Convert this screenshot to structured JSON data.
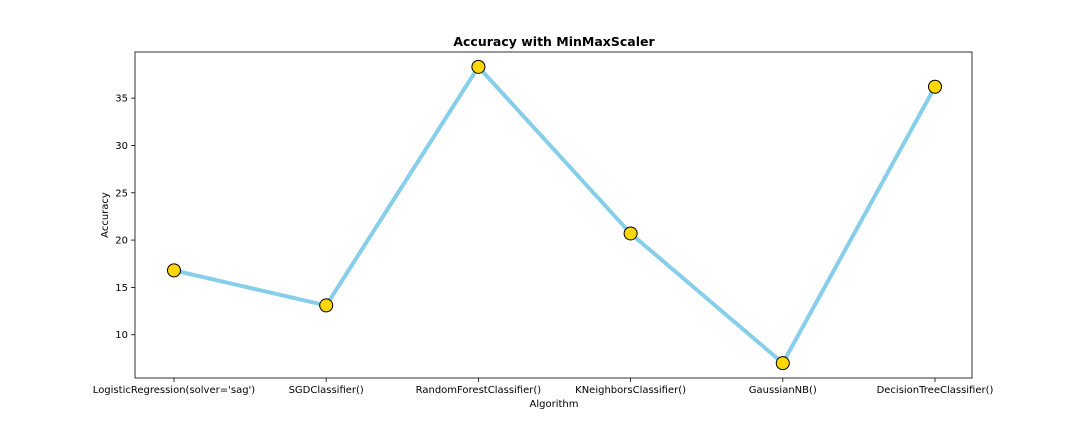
{
  "chart_data": {
    "type": "line",
    "title": "Accuracy with MinMaxScaler",
    "xlabel": "Algorithm",
    "ylabel": "Accuracy",
    "categories": [
      "LogisticRegression(solver='sag')",
      "SGDClassifier()",
      "RandomForestClassifier()",
      "KNeighborsClassifier()",
      "GaussianNB()",
      "DecisionTreeClassifier()"
    ],
    "series": [
      {
        "values": [
          16.8,
          13.1,
          38.3,
          20.7,
          7.0,
          36.2
        ],
        "line_color": "#87ceeb",
        "marker_color": "#ffd700",
        "marker_edge_color": "#000000"
      }
    ],
    "ylim": [
      5.43,
      39.87
    ],
    "yticks": [
      10,
      15,
      20,
      25,
      30,
      35
    ],
    "ytick_labels": [
      "10",
      "15",
      "20",
      "25",
      "30",
      "35"
    ],
    "grid": false,
    "legend": "none"
  }
}
